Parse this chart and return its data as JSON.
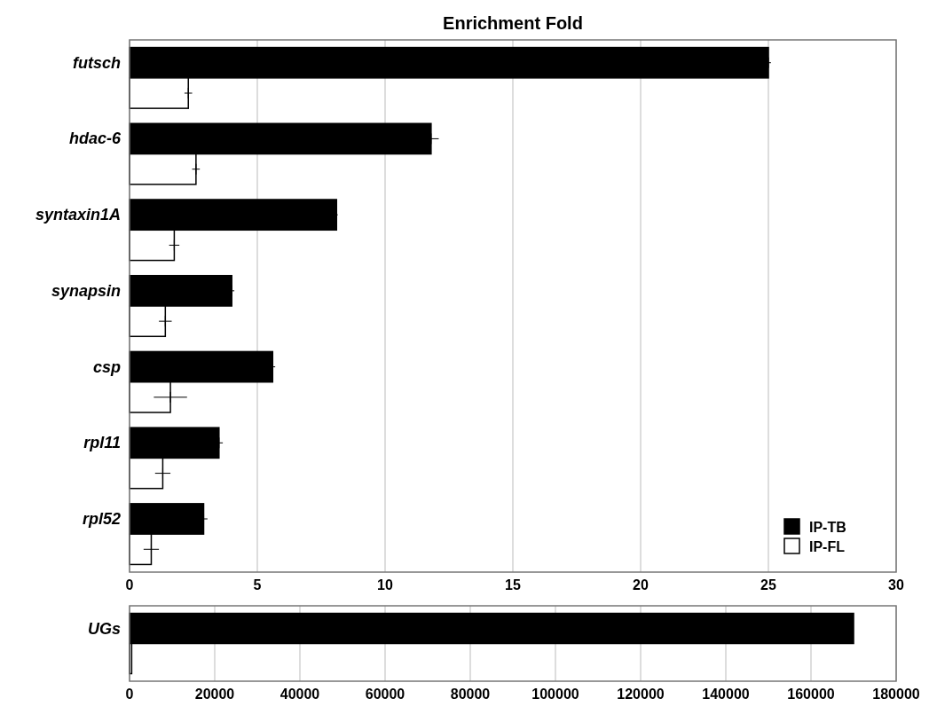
{
  "chart_data": [
    {
      "type": "bar",
      "orientation": "horizontal",
      "title": "Enrichment Fold",
      "categories": [
        "futsch",
        "hdac-6",
        "syntaxin1A",
        "synapsin",
        "csp",
        "rpl11",
        "rpl52"
      ],
      "series": [
        {
          "name": "IP-TB",
          "color": "#000000",
          "values": [
            25,
            11.8,
            8.1,
            4.0,
            5.6,
            3.5,
            2.9
          ],
          "errors": [
            0.1,
            0.3,
            0.05,
            0.1,
            0.1,
            0.15,
            0.15
          ]
        },
        {
          "name": "IP-FL",
          "color": "#ffffff",
          "values": [
            2.3,
            2.6,
            1.75,
            1.4,
            1.6,
            1.3,
            0.85
          ],
          "errors": [
            0.15,
            0.15,
            0.2,
            0.25,
            0.65,
            0.3,
            0.3
          ]
        }
      ],
      "xlim": [
        0,
        30
      ],
      "xticks": [
        0,
        5,
        10,
        15,
        20,
        25,
        30
      ],
      "grid": "x",
      "legend": "bottom right"
    },
    {
      "type": "bar",
      "orientation": "horizontal",
      "categories": [
        "UGs"
      ],
      "series": [
        {
          "color": "#000000",
          "values": [
            170000
          ]
        },
        {
          "color": "#ffffff",
          "values": [
            500
          ]
        }
      ],
      "xlim": [
        0,
        180000
      ],
      "xticks": [
        0,
        20000,
        40000,
        60000,
        80000,
        100000,
        120000,
        140000,
        160000,
        180000
      ],
      "grid": "x"
    }
  ]
}
